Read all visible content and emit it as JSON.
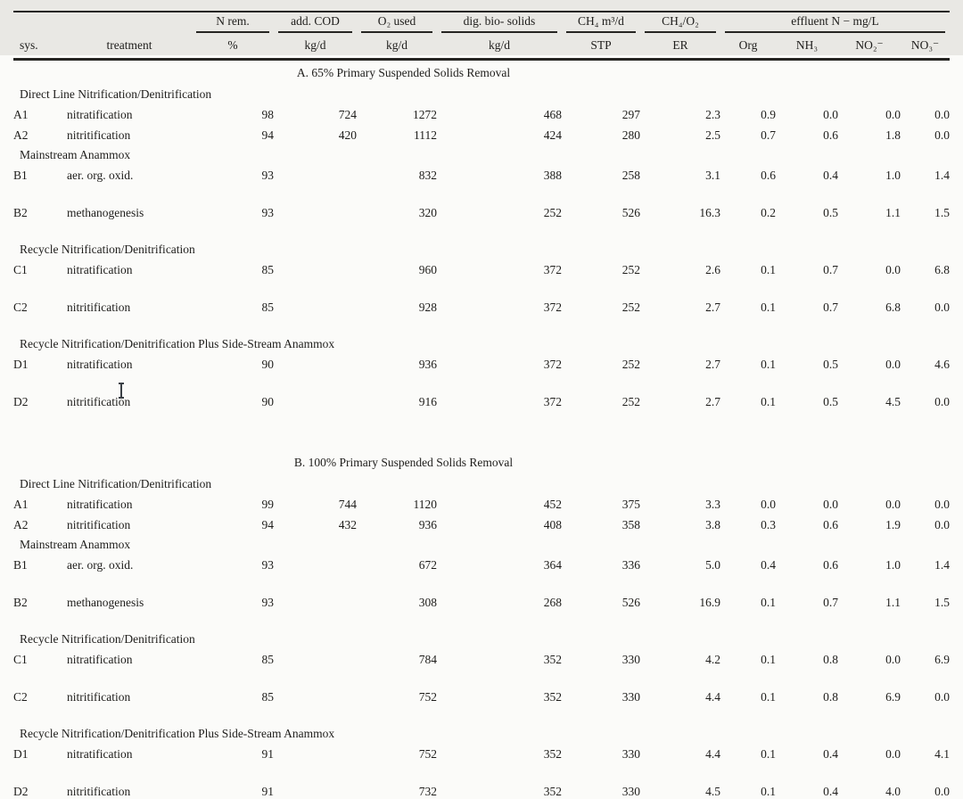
{
  "colors": {
    "page_bg": "#fbfbf9",
    "header_band": "#e9e8e4",
    "rule": "#262522",
    "text": "#1e1d1b"
  },
  "table": {
    "header": {
      "sys_label": "sys.",
      "treatment_label": "treatment",
      "groups": [
        {
          "label": "N rem.",
          "sub": "%"
        },
        {
          "label": "add. COD",
          "sub": "kg/d"
        },
        {
          "label": "O₂ used",
          "sub": "kg/d"
        },
        {
          "label": "dig. bio- solids",
          "sub": "kg/d"
        },
        {
          "label": "CH₄ m³/d",
          "sub": "STP"
        },
        {
          "label": "CH₄/O₂",
          "sub": "ER"
        },
        {
          "label": "effluent N − mg/L",
          "subs": [
            "Org",
            "NH₃",
            "NO₂⁻",
            "NO₃⁻"
          ]
        }
      ]
    },
    "sections": [
      {
        "title": "A. 65% Primary Suspended Solids Removal",
        "groups": [
          {
            "name": "Direct Line Nitrification/Denitrification",
            "rows": [
              {
                "sys": "A1",
                "treatment": "nitratification",
                "tall": false,
                "values": [
                  "98",
                  "724",
                  "1272",
                  "468",
                  "297",
                  "2.3",
                  "0.9",
                  "0.0",
                  "0.0",
                  "0.0"
                ]
              },
              {
                "sys": "A2",
                "treatment": "nitritification",
                "tall": false,
                "values": [
                  "94",
                  "420",
                  "1112",
                  "424",
                  "280",
                  "2.5",
                  "0.7",
                  "0.6",
                  "1.8",
                  "0.0"
                ]
              }
            ]
          },
          {
            "name": "Mainstream Anammox",
            "rows": [
              {
                "sys": "B1",
                "treatment": "aer. org. oxid.",
                "tall": true,
                "values": [
                  "93",
                  "",
                  "832",
                  "388",
                  "258",
                  "3.1",
                  "0.6",
                  "0.4",
                  "1.0",
                  "1.4"
                ]
              },
              {
                "sys": "B2",
                "treatment": "methanogenesis",
                "tall": true,
                "values": [
                  "93",
                  "",
                  "320",
                  "252",
                  "526",
                  "16.3",
                  "0.2",
                  "0.5",
                  "1.1",
                  "1.5"
                ]
              }
            ]
          },
          {
            "name": "Recycle Nitrification/Denitrification",
            "rows": [
              {
                "sys": "C1",
                "treatment": "nitratification",
                "tall": true,
                "values": [
                  "85",
                  "",
                  "960",
                  "372",
                  "252",
                  "2.6",
                  "0.1",
                  "0.7",
                  "0.0",
                  "6.8"
                ]
              },
              {
                "sys": "C2",
                "treatment": "nitritification",
                "tall": true,
                "values": [
                  "85",
                  "",
                  "928",
                  "372",
                  "252",
                  "2.7",
                  "0.1",
                  "0.7",
                  "6.8",
                  "0.0"
                ]
              }
            ]
          },
          {
            "name": "Recycle Nitrification/Denitrification Plus Side-Stream Anammox",
            "rows": [
              {
                "sys": "D1",
                "treatment": "nitratification",
                "tall": true,
                "values": [
                  "90",
                  "",
                  "936",
                  "372",
                  "252",
                  "2.7",
                  "0.1",
                  "0.5",
                  "0.0",
                  "4.6"
                ]
              },
              {
                "sys": "D2",
                "treatment": "nitritification",
                "tall": true,
                "values": [
                  "90",
                  "",
                  "916",
                  "372",
                  "252",
                  "2.7",
                  "0.1",
                  "0.5",
                  "4.5",
                  "0.0"
                ]
              }
            ]
          }
        ]
      },
      {
        "title": "B. 100% Primary Suspended Solids Removal",
        "groups": [
          {
            "name": "Direct Line Nitrification/Denitrification",
            "rows": [
              {
                "sys": "A1",
                "treatment": "nitratification",
                "tall": false,
                "values": [
                  "99",
                  "744",
                  "1120",
                  "452",
                  "375",
                  "3.3",
                  "0.0",
                  "0.0",
                  "0.0",
                  "0.0"
                ]
              },
              {
                "sys": "A2",
                "treatment": "nitritification",
                "tall": false,
                "values": [
                  "94",
                  "432",
                  "936",
                  "408",
                  "358",
                  "3.8",
                  "0.3",
                  "0.6",
                  "1.9",
                  "0.0"
                ]
              }
            ]
          },
          {
            "name": "Mainstream Anammox",
            "rows": [
              {
                "sys": "B1",
                "treatment": "aer. org. oxid.",
                "tall": true,
                "values": [
                  "93",
                  "",
                  "672",
                  "364",
                  "336",
                  "5.0",
                  "0.4",
                  "0.6",
                  "1.0",
                  "1.4"
                ]
              },
              {
                "sys": "B2",
                "treatment": "methanogenesis",
                "tall": true,
                "values": [
                  "93",
                  "",
                  "308",
                  "268",
                  "526",
                  "16.9",
                  "0.1",
                  "0.7",
                  "1.1",
                  "1.5"
                ]
              }
            ]
          },
          {
            "name": "Recycle Nitrification/Denitrification",
            "rows": [
              {
                "sys": "C1",
                "treatment": "nitratification",
                "tall": true,
                "values": [
                  "85",
                  "",
                  "784",
                  "352",
                  "330",
                  "4.2",
                  "0.1",
                  "0.8",
                  "0.0",
                  "6.9"
                ]
              },
              {
                "sys": "C2",
                "treatment": "nitritification",
                "tall": true,
                "values": [
                  "85",
                  "",
                  "752",
                  "352",
                  "330",
                  "4.4",
                  "0.1",
                  "0.8",
                  "6.9",
                  "0.0"
                ]
              }
            ]
          },
          {
            "name": "Recycle Nitrification/Denitrification Plus Side-Stream Anammox",
            "rows": [
              {
                "sys": "D1",
                "treatment": "nitratification",
                "tall": true,
                "values": [
                  "91",
                  "",
                  "752",
                  "352",
                  "330",
                  "4.4",
                  "0.1",
                  "0.4",
                  "0.0",
                  "4.1"
                ]
              },
              {
                "sys": "D2",
                "treatment": "nitritification",
                "tall": true,
                "values": [
                  "91",
                  "",
                  "732",
                  "352",
                  "330",
                  "4.5",
                  "0.1",
                  "0.4",
                  "4.0",
                  "0.0"
                ]
              }
            ]
          }
        ]
      }
    ]
  }
}
